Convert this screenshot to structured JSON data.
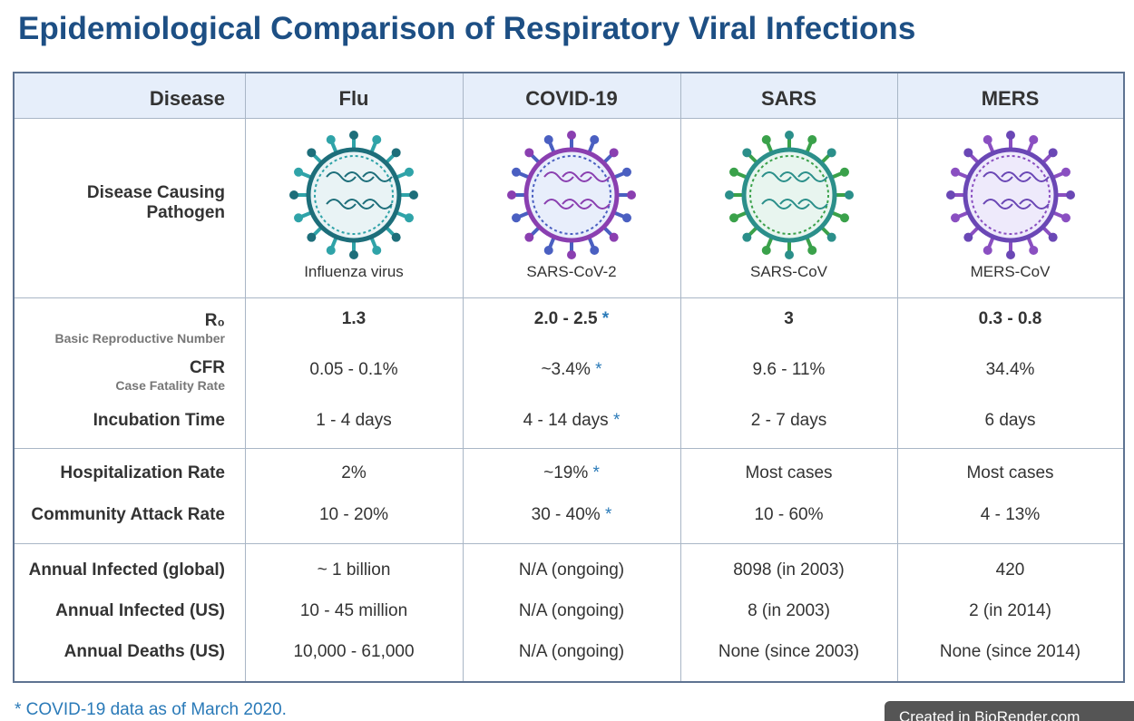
{
  "title": "Epidemiological Comparison of Respiratory Viral Infections",
  "table": {
    "header": [
      "Disease",
      "Flu",
      "COVID-19",
      "SARS",
      "MERS"
    ],
    "pathogen_row": {
      "label": "Disease Causing Pathogen",
      "values": [
        "Influenza virus",
        "SARS-CoV-2",
        "SARS-CoV",
        "MERS-CoV"
      ]
    },
    "groups": [
      {
        "rows": [
          {
            "label": "R₀",
            "sublabel": "Basic Reproductive Number",
            "cells": [
              {
                "text": "1.3"
              },
              {
                "text": "2.0 - 2.5",
                "note": "*"
              },
              {
                "text": "3"
              },
              {
                "text": "0.3 - 0.8"
              }
            ]
          },
          {
            "label": "CFR",
            "sublabel": "Case Fatality Rate",
            "cells": [
              {
                "text": "0.05 - 0.1%"
              },
              {
                "text": "~3.4%",
                "note": "*"
              },
              {
                "text": "9.6 - 11%"
              },
              {
                "text": "34.4%"
              }
            ]
          },
          {
            "label": "Incubation Time",
            "cells": [
              {
                "text": "1 - 4 days"
              },
              {
                "text": "4 - 14 days",
                "note": "*"
              },
              {
                "text": "2 - 7 days"
              },
              {
                "text": "6 days"
              }
            ]
          }
        ]
      },
      {
        "rows": [
          {
            "label": "Hospitalization Rate",
            "cells": [
              {
                "text": "2%"
              },
              {
                "text": "~19%",
                "note": "*"
              },
              {
                "text": "Most cases"
              },
              {
                "text": "Most cases"
              }
            ]
          },
          {
            "label": "Community Attack Rate",
            "cells": [
              {
                "text": "10 - 20%"
              },
              {
                "text": "30 - 40%",
                "note": "*"
              },
              {
                "text": "10 - 60%"
              },
              {
                "text": "4 - 13%"
              }
            ]
          }
        ]
      },
      {
        "rows": [
          {
            "label": "Annual Infected (global)",
            "cells": [
              {
                "text": "~ 1 billion"
              },
              {
                "text": "N/A (ongoing)"
              },
              {
                "text": "8098 (in 2003)"
              },
              {
                "text": "420"
              }
            ]
          },
          {
            "label": "Annual Infected (US)",
            "cells": [
              {
                "text": "10 - 45 million"
              },
              {
                "text": "N/A (ongoing)"
              },
              {
                "text": "8 (in 2003)"
              },
              {
                "text": "2 (in 2014)"
              }
            ]
          },
          {
            "label": "Annual Deaths (US)",
            "cells": [
              {
                "text": "10,000 - 61,000"
              },
              {
                "text": "N/A (ongoing)"
              },
              {
                "text": "None (since 2003)"
              },
              {
                "text": "None (since 2014)"
              }
            ]
          }
        ]
      }
    ]
  },
  "footnote": "* COVID-19 data as of March 2020.",
  "badge": "Created in BioRender.com"
}
